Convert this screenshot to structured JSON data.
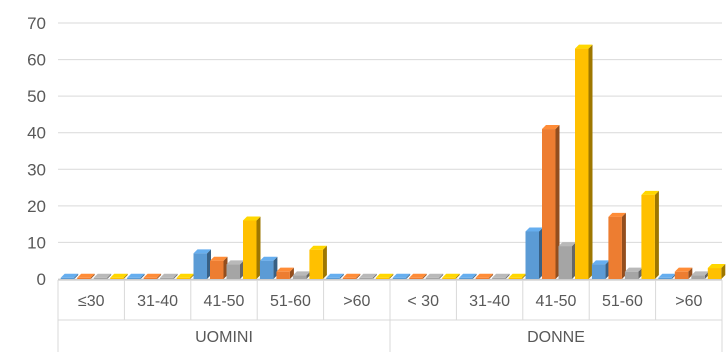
{
  "chart_data": {
    "type": "bar",
    "groups": [
      {
        "label": "UOMINI",
        "categories": [
          "≤30",
          "31-40",
          "41-50",
          "51-60",
          ">60"
        ]
      },
      {
        "label": "DONNE",
        "categories": [
          "< 30",
          "31-40",
          "41-50",
          "51-60",
          ">60"
        ]
      }
    ],
    "series": [
      {
        "color": "#5B9BD5",
        "values": [
          0,
          0,
          7,
          5,
          0,
          0,
          0,
          13,
          4,
          0
        ]
      },
      {
        "color": "#ED7D31",
        "values": [
          0,
          0,
          5,
          2,
          0,
          0,
          0,
          41,
          17,
          2
        ]
      },
      {
        "color": "#A5A5A5",
        "values": [
          0,
          0,
          4,
          1,
          0,
          0,
          0,
          9,
          2,
          1
        ]
      },
      {
        "color": "#FFC000",
        "values": [
          0,
          0,
          16,
          8,
          0,
          0,
          0,
          63,
          23,
          3
        ]
      }
    ],
    "ylim": [
      0,
      70
    ],
    "yticks": [
      "0",
      "10",
      "20",
      "30",
      "40",
      "50",
      "60",
      "70"
    ],
    "grid": true,
    "style": "3d-clustered-column"
  }
}
